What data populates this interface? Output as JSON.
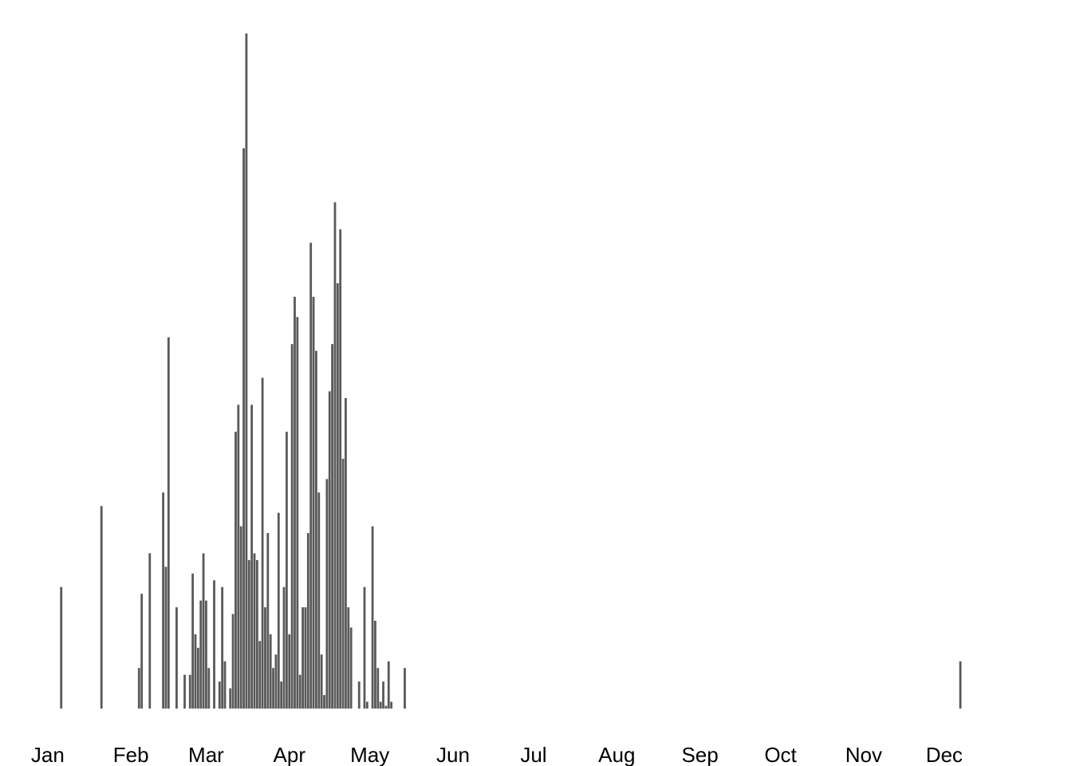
{
  "chart_data": {
    "type": "bar",
    "x": [
      6,
      21,
      35,
      36,
      39,
      44,
      45,
      46,
      49,
      52,
      54,
      55,
      56,
      57,
      58,
      59,
      60,
      61,
      63,
      65,
      66,
      67,
      69,
      70,
      71,
      72,
      73,
      74,
      75,
      76,
      77,
      78,
      79,
      80,
      81,
      82,
      83,
      84,
      85,
      86,
      87,
      88,
      89,
      90,
      91,
      92,
      93,
      94,
      95,
      96,
      97,
      98,
      99,
      100,
      101,
      102,
      103,
      104,
      105,
      106,
      107,
      108,
      109,
      110,
      111,
      112,
      113,
      114,
      117,
      119,
      120,
      122,
      123,
      124,
      125,
      126,
      127,
      128,
      129,
      134,
      341
    ],
    "values": [
      18,
      30,
      6,
      17,
      23,
      32,
      21,
      55,
      15,
      5,
      5,
      20,
      11,
      9,
      16,
      23,
      16,
      6,
      19,
      4,
      18,
      7,
      3,
      14,
      41,
      45,
      27,
      83,
      100,
      22,
      45,
      23,
      22,
      10,
      49,
      15,
      26,
      11,
      6,
      8,
      29,
      4,
      18,
      41,
      11,
      54,
      61,
      58,
      5,
      15,
      15,
      26,
      69,
      61,
      53,
      32,
      8,
      2,
      34,
      47,
      54,
      75,
      63,
      71,
      37,
      46,
      15,
      12,
      4,
      18,
      1,
      27,
      13,
      6,
      1,
      4,
      0.4,
      7,
      1,
      6,
      7
    ],
    "color": "#595959",
    "xlim": [
      -16.8,
      382.6
    ],
    "xticks": [
      {
        "value": 1,
        "label": "Jan"
      },
      {
        "value": 32,
        "label": "Feb"
      },
      {
        "value": 60,
        "label": "Mar"
      },
      {
        "value": 91,
        "label": "Apr"
      },
      {
        "value": 121,
        "label": "May"
      },
      {
        "value": 152,
        "label": "Jun"
      },
      {
        "value": 182,
        "label": "Jul"
      },
      {
        "value": 213,
        "label": "Aug"
      },
      {
        "value": 244,
        "label": "Sep"
      },
      {
        "value": 274,
        "label": "Oct"
      },
      {
        "value": 305,
        "label": "Nov"
      },
      {
        "value": 335,
        "label": "Dec"
      }
    ],
    "ylim": [
      0,
      100
    ]
  }
}
